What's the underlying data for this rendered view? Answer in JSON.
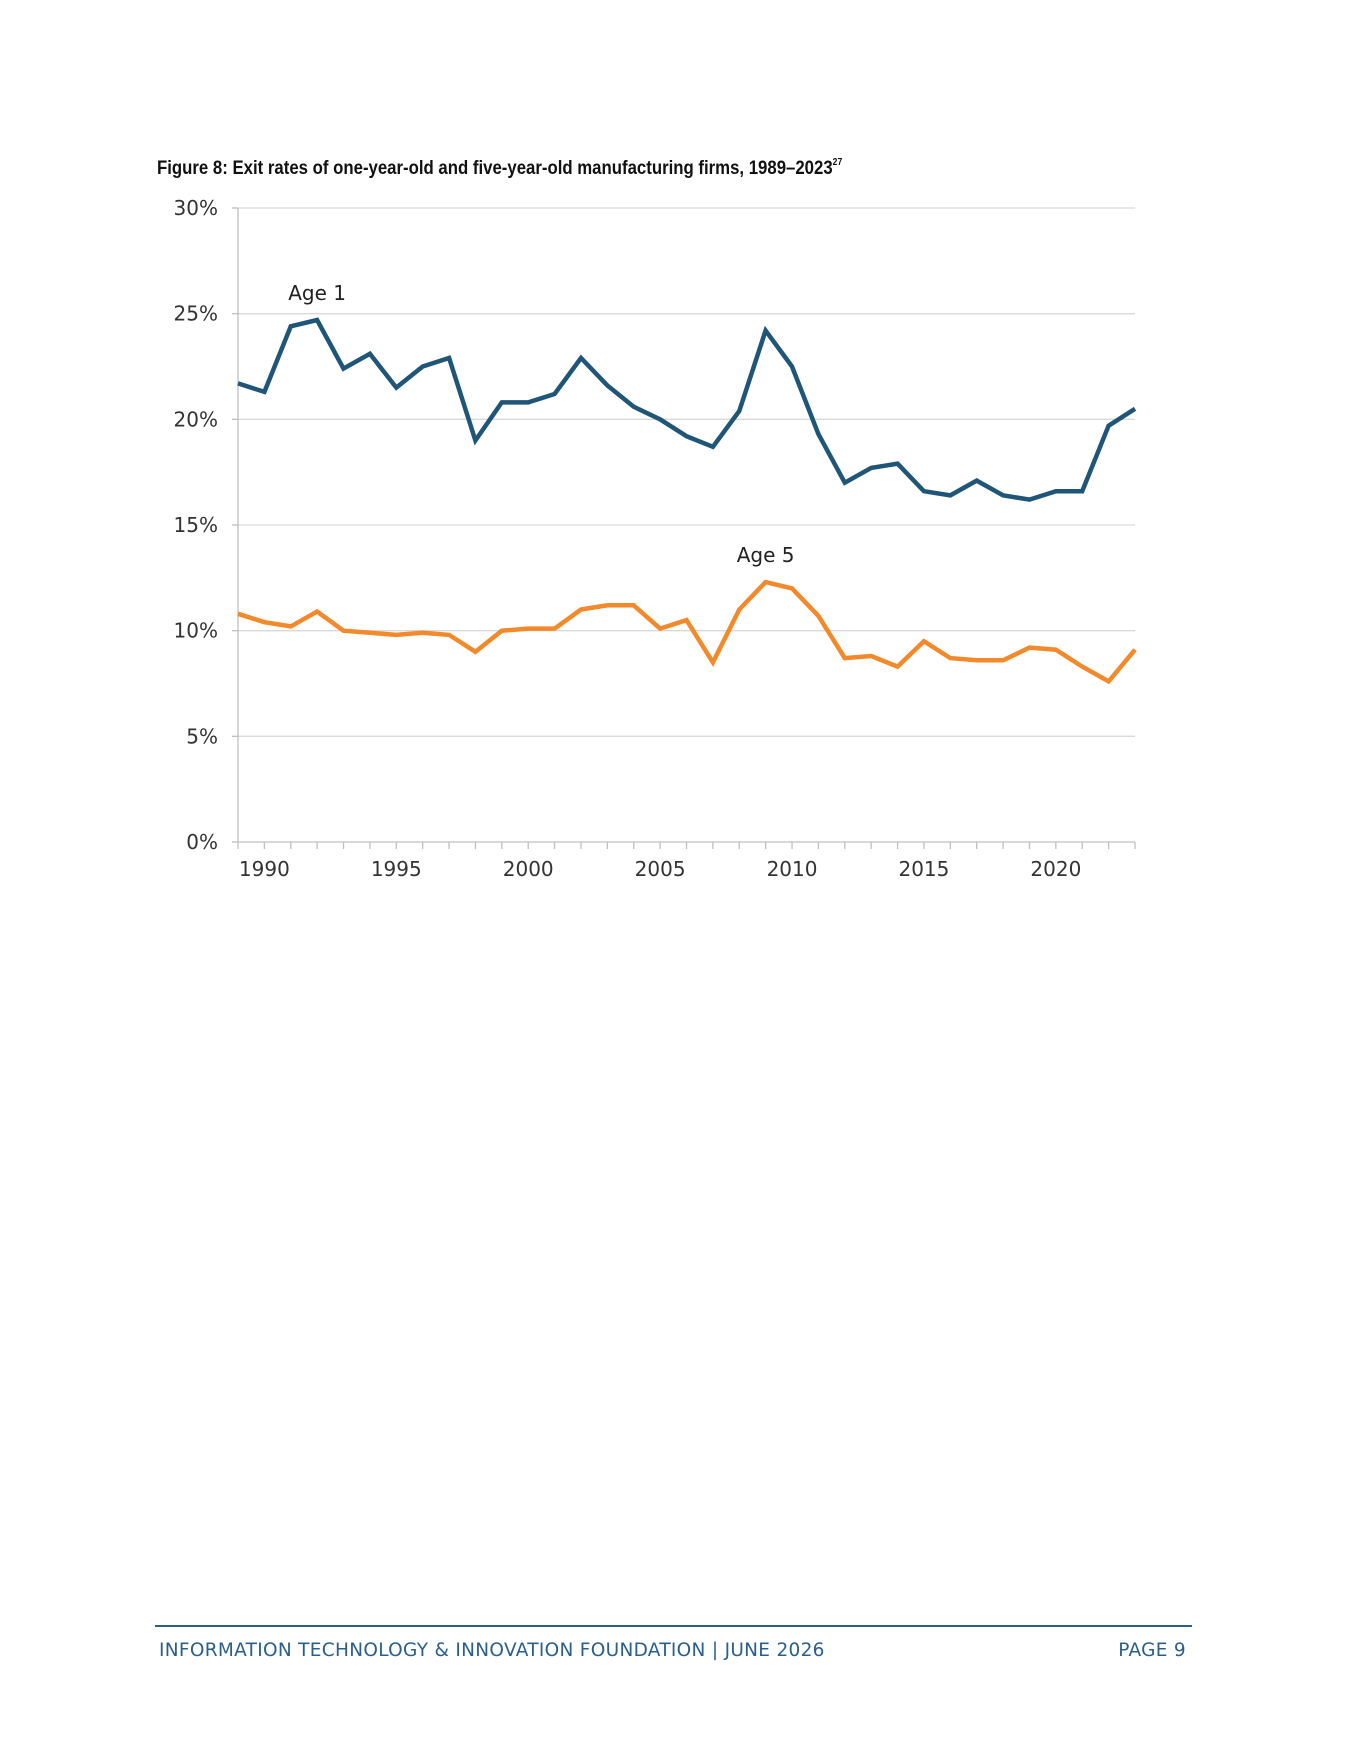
{
  "figure": {
    "title": "Figure 8: Exit rates of one-year-old and five-year-old manufacturing firms, 1989–2023",
    "footnote": "27"
  },
  "chart_data": {
    "type": "line",
    "title": "Figure 8: Exit rates of one-year-old and five-year-old manufacturing firms, 1989–2023",
    "x": [
      1989,
      1990,
      1991,
      1992,
      1993,
      1994,
      1995,
      1996,
      1997,
      1998,
      1999,
      2000,
      2001,
      2002,
      2003,
      2004,
      2005,
      2006,
      2007,
      2008,
      2009,
      2010,
      2011,
      2012,
      2013,
      2014,
      2015,
      2016,
      2017,
      2018,
      2019,
      2020,
      2021,
      2022,
      2023
    ],
    "x_ticks": [
      "1990",
      "1995",
      "2000",
      "2005",
      "2010",
      "2015",
      "2020"
    ],
    "y_ticks": [
      "0%",
      "5%",
      "10%",
      "15%",
      "20%",
      "25%",
      "30%"
    ],
    "ylim": [
      0,
      30
    ],
    "xlim": [
      1989,
      2023
    ],
    "xlabel": "",
    "ylabel": "",
    "grid": true,
    "legend": "none",
    "series": [
      {
        "name": "Age 1",
        "color": "#1f5577",
        "values": [
          21.7,
          21.3,
          24.4,
          24.7,
          22.4,
          23.1,
          21.5,
          22.5,
          22.9,
          19.0,
          20.8,
          20.8,
          21.2,
          22.9,
          21.6,
          20.6,
          20.0,
          19.2,
          18.7,
          20.4,
          24.2,
          22.5,
          19.3,
          17.0,
          17.7,
          17.9,
          16.6,
          16.4,
          17.1,
          16.4,
          16.2,
          16.6,
          16.6,
          19.7,
          20.5
        ]
      },
      {
        "name": "Age 5",
        "color": "#f28a2b",
        "values": [
          10.8,
          10.4,
          10.2,
          10.9,
          10.0,
          9.9,
          9.8,
          9.9,
          9.8,
          9.0,
          10.0,
          10.1,
          10.1,
          11.0,
          11.2,
          11.2,
          10.1,
          10.5,
          8.5,
          11.0,
          12.3,
          12.0,
          10.7,
          8.7,
          8.8,
          8.3,
          9.5,
          8.7,
          8.6,
          8.6,
          9.2,
          9.1,
          8.3,
          7.6,
          9.1
        ]
      }
    ]
  },
  "footer": {
    "left": "INFORMATION TECHNOLOGY & INNOVATION FOUNDATION   |   JUNE 2026",
    "right": "PAGE 9"
  }
}
